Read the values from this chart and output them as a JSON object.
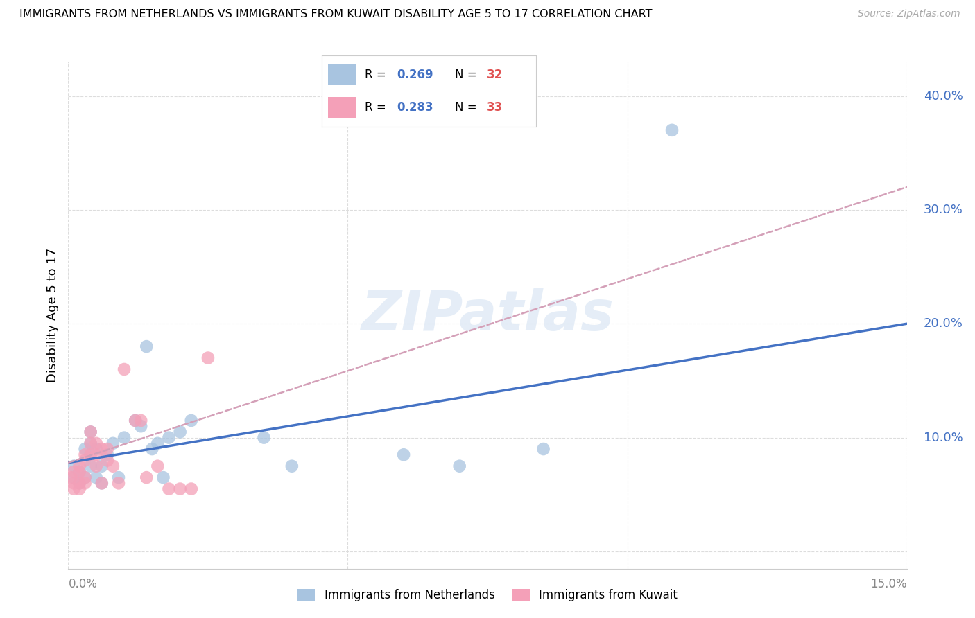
{
  "title": "IMMIGRANTS FROM NETHERLANDS VS IMMIGRANTS FROM KUWAIT DISABILITY AGE 5 TO 17 CORRELATION CHART",
  "source": "Source: ZipAtlas.com",
  "ylabel": "Disability Age 5 to 17",
  "y_ticks": [
    0.0,
    0.1,
    0.2,
    0.3,
    0.4
  ],
  "y_tick_labels": [
    "",
    "10.0%",
    "20.0%",
    "30.0%",
    "40.0%"
  ],
  "x_lim": [
    0.0,
    0.15
  ],
  "y_lim": [
    -0.015,
    0.43
  ],
  "netherlands_color": "#a8c4e0",
  "kuwait_color": "#f4a0b8",
  "netherlands_trend_color": "#4472c4",
  "kuwait_trend_color": "#d4a0b8",
  "legend_r_netherlands": "0.269",
  "legend_n_netherlands": "32",
  "legend_r_kuwait": "0.283",
  "legend_n_kuwait": "33",
  "watermark": "ZIPatlas",
  "nl_trend_x0": 0.0,
  "nl_trend_y0": 0.078,
  "nl_trend_x1": 0.15,
  "nl_trend_y1": 0.2,
  "kw_trend_x0": 0.0,
  "kw_trend_y0": 0.078,
  "kw_trend_x1": 0.15,
  "kw_trend_y1": 0.32,
  "netherlands_x": [
    0.001,
    0.001,
    0.002,
    0.002,
    0.003,
    0.003,
    0.004,
    0.004,
    0.004,
    0.005,
    0.005,
    0.006,
    0.006,
    0.007,
    0.008,
    0.009,
    0.01,
    0.012,
    0.013,
    0.014,
    0.015,
    0.016,
    0.017,
    0.018,
    0.022,
    0.035,
    0.04,
    0.085,
    0.108,
    0.06,
    0.07,
    0.02
  ],
  "netherlands_y": [
    0.065,
    0.075,
    0.07,
    0.06,
    0.065,
    0.09,
    0.075,
    0.095,
    0.105,
    0.065,
    0.09,
    0.075,
    0.06,
    0.085,
    0.095,
    0.065,
    0.1,
    0.115,
    0.11,
    0.18,
    0.09,
    0.095,
    0.065,
    0.1,
    0.115,
    0.1,
    0.075,
    0.09,
    0.37,
    0.085,
    0.075,
    0.105
  ],
  "kuwait_x": [
    0.0005,
    0.001,
    0.001,
    0.001,
    0.002,
    0.002,
    0.002,
    0.002,
    0.003,
    0.003,
    0.003,
    0.003,
    0.004,
    0.004,
    0.004,
    0.005,
    0.005,
    0.005,
    0.006,
    0.006,
    0.007,
    0.007,
    0.008,
    0.009,
    0.01,
    0.012,
    0.013,
    0.014,
    0.016,
    0.018,
    0.02,
    0.022,
    0.025
  ],
  "kuwait_y": [
    0.065,
    0.07,
    0.06,
    0.055,
    0.075,
    0.07,
    0.06,
    0.055,
    0.085,
    0.08,
    0.065,
    0.06,
    0.105,
    0.095,
    0.085,
    0.095,
    0.085,
    0.075,
    0.09,
    0.06,
    0.09,
    0.08,
    0.075,
    0.06,
    0.16,
    0.115,
    0.115,
    0.065,
    0.075,
    0.055,
    0.055,
    0.055,
    0.17
  ]
}
